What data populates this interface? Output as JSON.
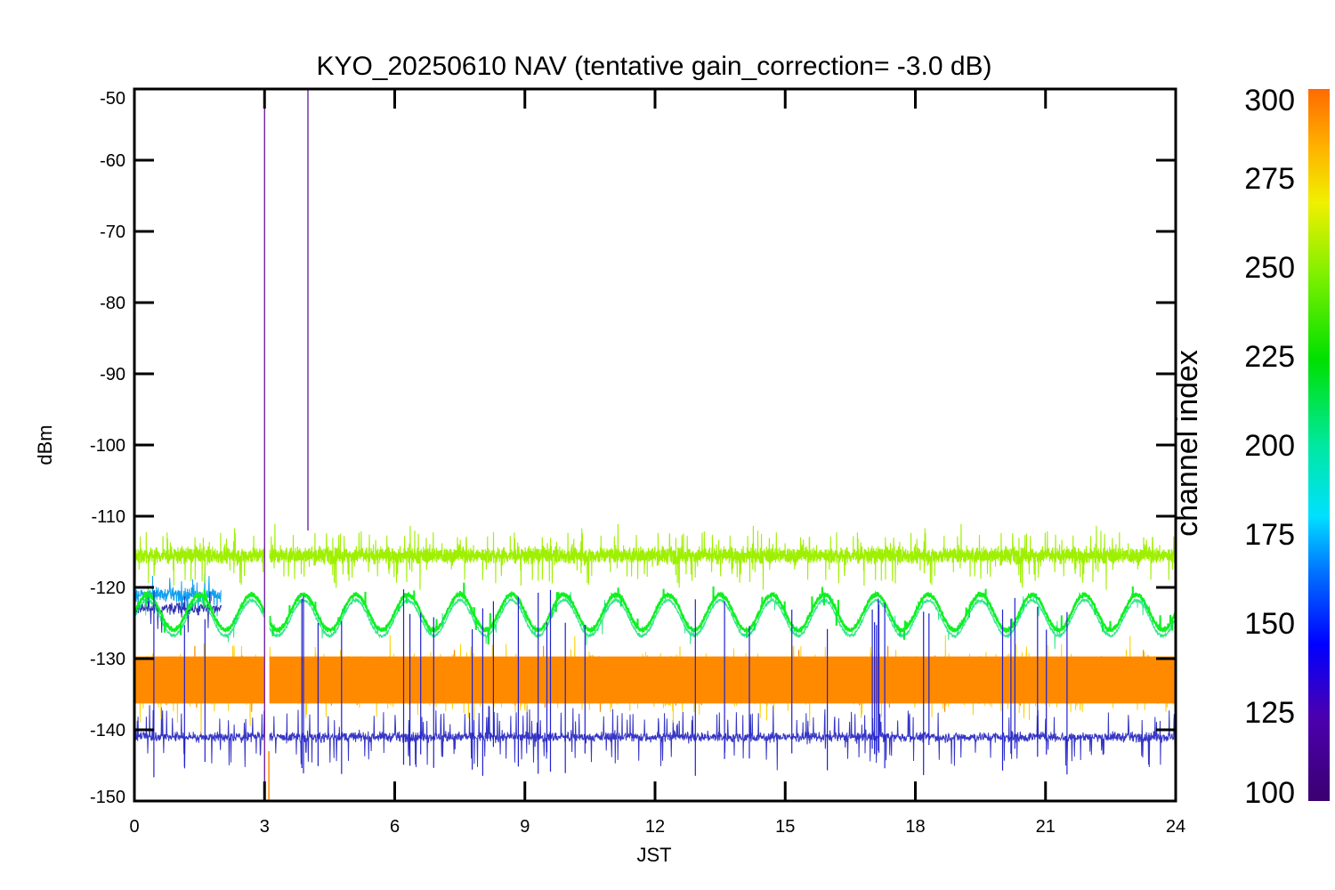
{
  "chart_data": {
    "type": "line",
    "title": "KYO_20250610 NAV (tentative gain_correction= -3.0 dB)",
    "xlabel": "JST",
    "ylabel": "dBm",
    "xlim": [
      0,
      24
    ],
    "ylim": [
      -150,
      -50
    ],
    "x_ticks": [
      "0",
      "3",
      "6",
      "9",
      "12",
      "15",
      "18",
      "21",
      "24"
    ],
    "y_ticks": [
      "-50",
      "-60",
      "-70",
      "-80",
      "-90",
      "-100",
      "-110",
      "-120",
      "-130",
      "-140",
      "-150"
    ],
    "colorbar": {
      "title": "channel index",
      "range": [
        100,
        300
      ],
      "tick_labels": [
        "300",
        "275",
        "250",
        "225",
        "200",
        "175",
        "150",
        "125",
        "100"
      ],
      "colormap": "rainbow"
    },
    "gap": {
      "x_start": 3.0,
      "x_end": 3.1
    },
    "spikes": [
      {
        "x": 3.0,
        "y_top": -50,
        "color": "#5a0090"
      },
      {
        "x": 4.0,
        "y_top": -50,
        "y_bottom": -112,
        "color": "#5a0090"
      }
    ],
    "series": [
      {
        "channel_index": 255,
        "color": "#9ef000",
        "band_center": -115.5,
        "band_halfwidth": 2.5,
        "peak_range": [
          -110,
          -121
        ],
        "x": [
          0,
          24
        ]
      },
      {
        "channel_index": 230,
        "color": "#10f020",
        "band_center": -123.5,
        "oscillation_amplitude": 2.5,
        "oscillation_period_hours": 1.2,
        "x": [
          0,
          24
        ]
      },
      {
        "channel_index": 290,
        "color": "#ff8a00",
        "band_center": -133,
        "band_halfwidth": 5,
        "peak_range": [
          -126,
          -141
        ],
        "x": [
          0,
          24
        ]
      },
      {
        "channel_index": 270,
        "color": "#ffd000",
        "band_center": -133,
        "band_halfwidth": 6.5,
        "peak_range": [
          -126,
          -143
        ],
        "x": [
          0,
          24
        ]
      },
      {
        "channel_index": 150,
        "color": "#10a0f0",
        "band_center": -121,
        "band_halfwidth": 2,
        "x": [
          0,
          2
        ]
      },
      {
        "channel_index": 125,
        "color": "#2020c0",
        "band_center": -141,
        "band_halfwidth": 1.5,
        "x": [
          0,
          24
        ]
      }
    ]
  }
}
